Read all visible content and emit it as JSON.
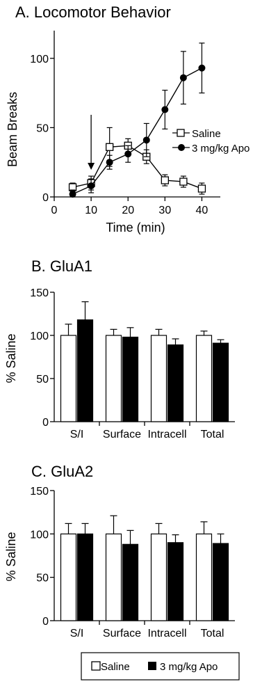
{
  "chart_data": [
    {
      "type": "line",
      "title": "A. Locomotor Behavior",
      "xlabel": "Time (min)",
      "ylabel": "Beam Breaks",
      "xlim": [
        0,
        45
      ],
      "ylim": [
        0,
        120
      ],
      "xticks": [
        "0",
        "10",
        "20",
        "30",
        "40"
      ],
      "yticks": [
        "0",
        "50",
        "100"
      ],
      "annotation": "arrow at 10 min",
      "arrow_x": 10,
      "legend": "right-center",
      "series": [
        {
          "name": "Saline",
          "marker": "open-square",
          "x": [
            5,
            10,
            15,
            20,
            25,
            30,
            35,
            40
          ],
          "y": [
            7,
            10,
            36,
            37,
            29,
            12,
            11,
            6
          ],
          "err": [
            3,
            5,
            14,
            5,
            5,
            4,
            4,
            4
          ]
        },
        {
          "name": "3 mg/kg Apo",
          "marker": "filled-circle",
          "x": [
            5,
            10,
            15,
            20,
            25,
            30,
            35,
            40
          ],
          "y": [
            2,
            8,
            25,
            31,
            41,
            63,
            86,
            93
          ],
          "err": [
            3,
            5,
            5,
            6,
            12,
            14,
            19,
            18
          ]
        }
      ]
    },
    {
      "type": "bar",
      "title": "B. GluA1",
      "ylabel": "% Saline",
      "ylim": [
        0,
        150
      ],
      "yticks": [
        "0",
        "50",
        "100",
        "150"
      ],
      "categories": [
        "S/I",
        "Surface",
        "Intracell",
        "Total"
      ],
      "series": [
        {
          "name": "Saline",
          "values": [
            100,
            100,
            100,
            100
          ],
          "err": [
            13,
            7,
            7,
            5
          ]
        },
        {
          "name": "3 mg/kg Apo",
          "values": [
            118,
            98,
            89,
            91
          ],
          "err": [
            21,
            11,
            7,
            4
          ]
        }
      ]
    },
    {
      "type": "bar",
      "title": "C. GluA2",
      "ylabel": "% Saline",
      "ylim": [
        0,
        150
      ],
      "yticks": [
        "0",
        "50",
        "100",
        "150"
      ],
      "categories": [
        "S/I",
        "Surface",
        "Intracell",
        "Total"
      ],
      "series": [
        {
          "name": "Saline",
          "values": [
            100,
            100,
            100,
            100
          ],
          "err": [
            12,
            21,
            12,
            14
          ]
        },
        {
          "name": "3 mg/kg Apo",
          "values": [
            100,
            88,
            90,
            89
          ],
          "err": [
            12,
            16,
            9,
            11
          ]
        }
      ]
    }
  ],
  "legend_box": {
    "saline_label": "Saline",
    "apo_label": "3 mg/kg Apo"
  }
}
